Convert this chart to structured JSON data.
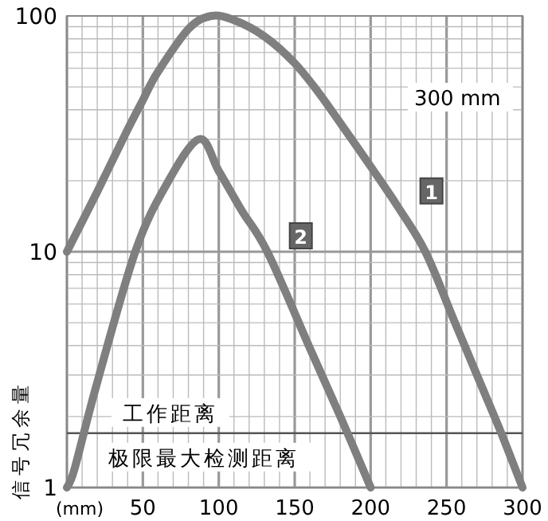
{
  "chart_data": {
    "type": "line",
    "subtitle": "300 mm",
    "xlabel": "(mm)",
    "ylabel": "信号冗余量",
    "x": [
      0,
      20,
      40,
      50,
      60,
      80,
      95,
      110,
      130,
      150,
      166,
      183,
      200,
      218,
      236,
      255,
      270,
      286,
      300
    ],
    "series": [
      {
        "name": "1",
        "color": "#7f7f7f",
        "values": [
          10,
          18,
          33,
          44,
          58,
          88,
          100,
          96,
          82,
          63,
          47,
          33,
          23,
          15.5,
          10,
          5.1,
          3,
          1.7,
          1
        ]
      },
      {
        "name": "2",
        "color": "#7f7f7f",
        "x": [
          0,
          5,
          20,
          45,
          65,
          87,
          100,
          115,
          132,
          160,
          180,
          200
        ],
        "values": [
          1,
          1.2,
          2.8,
          10,
          19,
          30,
          22,
          15,
          10,
          3.9,
          2,
          1
        ]
      }
    ],
    "xlim": [
      0,
      300
    ],
    "ylim": [
      1,
      100
    ],
    "xticks": [
      50,
      100,
      150,
      200,
      250,
      300
    ],
    "yticks": [
      1,
      10,
      100
    ],
    "log": "y",
    "grid": true,
    "marker": "none",
    "line_style": "solid",
    "ref_lines": [
      {
        "axis": "y",
        "value": 1.7,
        "label": "工作距离",
        "color": "#555555"
      }
    ],
    "annotations": [
      "极限最大检测距离"
    ]
  }
}
